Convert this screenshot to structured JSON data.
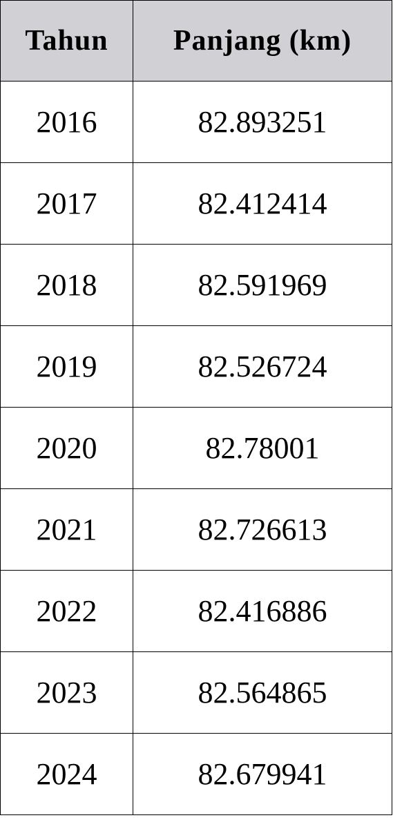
{
  "table": {
    "headers": [
      "Tahun",
      "Panjang (km)"
    ],
    "rows": [
      [
        "2016",
        "82.893251"
      ],
      [
        "2017",
        "82.412414"
      ],
      [
        "2018",
        "82.591969"
      ],
      [
        "2019",
        "82.526724"
      ],
      [
        "2020",
        "82.78001"
      ],
      [
        "2021",
        "82.726613"
      ],
      [
        "2022",
        "82.416886"
      ],
      [
        "2023",
        "82.564865"
      ],
      [
        "2024",
        "82.679941"
      ]
    ]
  },
  "colors": {
    "header_background": "#d1d0d5",
    "border": "#000000",
    "text": "#000000"
  }
}
